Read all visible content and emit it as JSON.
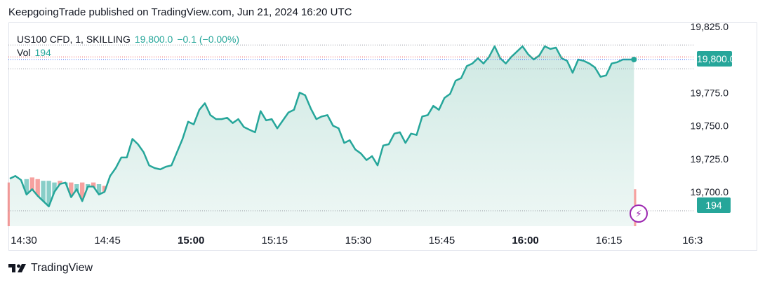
{
  "header": {
    "publish_text": "KeepgoingTrade published on TradingView.com, Jun 21, 2024 16:20 UTC"
  },
  "legend": {
    "symbol": "US100 CFD, 1, SKILLING",
    "price": "19,800.0",
    "change": "−0.1 (−0.00%)",
    "vol_label": "Vol",
    "vol_value": "194"
  },
  "badges": {
    "price": "19,800.0",
    "volume": "194"
  },
  "brand": {
    "name": "TradingView"
  },
  "icons": {
    "logo": "tradingview-logo-icon",
    "bolt": "lightning-bolt-icon"
  },
  "colors": {
    "up": "#26a69a",
    "down": "#ef5350",
    "area_top": "#cfe9e3",
    "area_bottom": "#eef7f5",
    "bolt": "#9c27b0"
  },
  "chart_data": {
    "type": "area",
    "x_start": "14:30",
    "interval_minutes": 1,
    "x_ticks": [
      "14:30",
      "14:45",
      "15:00",
      "15:15",
      "15:30",
      "15:45",
      "16:00",
      "16:15",
      "16:3"
    ],
    "x_ticks_bold": [
      "15:00",
      "16:00"
    ],
    "y_ticks": [
      "19,700.0",
      "19,725.0",
      "19,750.0",
      "19,775.0",
      "19,800.0",
      "19,825.0"
    ],
    "ylim": [
      19680,
      19832
    ],
    "close": [
      19710,
      19712,
      19709,
      19698,
      19702,
      19697,
      19693,
      19689,
      19700,
      19706,
      19707,
      19696,
      19702,
      19693,
      19704,
      19704,
      19698,
      19700,
      19712,
      19718,
      19726,
      19726,
      19740,
      19736,
      19730,
      19720,
      19718,
      19717,
      19719,
      19720,
      19730,
      19740,
      19753,
      19751,
      19762,
      19767,
      19758,
      19755,
      19755,
      19756,
      19752,
      19755,
      19749,
      19747,
      19745,
      19761,
      19754,
      19755,
      19748,
      19754,
      19760,
      19762,
      19775,
      19773,
      19763,
      19755,
      19757,
      19758,
      19750,
      19748,
      19737,
      19739,
      19732,
      19729,
      19724,
      19727,
      19720,
      19735,
      19736,
      19744,
      19745,
      19737,
      19744,
      19743,
      19757,
      19758,
      19765,
      19762,
      19771,
      19774,
      19784,
      19786,
      19795,
      19797,
      19801,
      19797,
      19802,
      19810,
      19801,
      19797,
      19802,
      19806,
      19810,
      19804,
      19800,
      19803,
      19810,
      19808,
      19809,
      19801,
      19799,
      19790,
      19800,
      19799,
      19797,
      19794,
      19787,
      19788,
      19797,
      19798,
      19800,
      19800,
      19800
    ],
    "volume": [
      {
        "v": 26,
        "d": 1
      },
      {
        "v": 27,
        "d": 1
      },
      {
        "v": 26,
        "d": 0
      },
      {
        "v": 28,
        "d": 0
      },
      {
        "v": 29,
        "d": 1
      },
      {
        "v": 28,
        "d": 1
      },
      {
        "v": 27,
        "d": 0
      },
      {
        "v": 27,
        "d": 0
      },
      {
        "v": 26,
        "d": 0
      },
      {
        "v": 27,
        "d": 1
      },
      {
        "v": 26,
        "d": 0
      },
      {
        "v": 26,
        "d": 1
      },
      {
        "v": 25,
        "d": 0
      },
      {
        "v": 26,
        "d": 1
      },
      {
        "v": 25,
        "d": 0
      },
      {
        "v": 26,
        "d": 1
      },
      {
        "v": 25,
        "d": 0
      },
      {
        "v": 24,
        "d": 1
      },
      {
        "v": 25,
        "d": 0
      },
      {
        "v": 24,
        "d": 1
      },
      {
        "v": 25,
        "d": 0
      },
      {
        "v": 24,
        "d": 1
      },
      {
        "v": 25,
        "d": 0
      },
      {
        "v": 26,
        "d": 1
      },
      {
        "v": 25,
        "d": 1
      },
      {
        "v": 26,
        "d": 0
      },
      {
        "v": 24,
        "d": 1
      },
      {
        "v": 25,
        "d": 0
      },
      {
        "v": 24,
        "d": 1
      },
      {
        "v": 25,
        "d": 0
      },
      {
        "v": 24,
        "d": 1
      },
      {
        "v": 25,
        "d": 0
      },
      {
        "v": 24,
        "d": 0
      },
      {
        "v": 26,
        "d": 1
      },
      {
        "v": 25,
        "d": 0
      },
      {
        "v": 26,
        "d": 0
      },
      {
        "v": 25,
        "d": 1
      },
      {
        "v": 24,
        "d": 0
      },
      {
        "v": 25,
        "d": 0
      },
      {
        "v": 24,
        "d": 1
      },
      {
        "v": 23,
        "d": 0
      },
      {
        "v": 24,
        "d": 1
      },
      {
        "v": 23,
        "d": 0
      },
      {
        "v": 24,
        "d": 1
      },
      {
        "v": 25,
        "d": 1
      },
      {
        "v": 24,
        "d": 0
      },
      {
        "v": 25,
        "d": 0
      },
      {
        "v": 24,
        "d": 1
      },
      {
        "v": 23,
        "d": 0
      },
      {
        "v": 24,
        "d": 1
      },
      {
        "v": 23,
        "d": 0
      },
      {
        "v": 24,
        "d": 1
      },
      {
        "v": 24,
        "d": 0
      },
      {
        "v": 25,
        "d": 1
      },
      {
        "v": 23,
        "d": 0
      },
      {
        "v": 24,
        "d": 1
      },
      {
        "v": 23,
        "d": 0
      },
      {
        "v": 24,
        "d": 1
      },
      {
        "v": 23,
        "d": 1
      },
      {
        "v": 24,
        "d": 0
      },
      {
        "v": 23,
        "d": 1
      },
      {
        "v": 24,
        "d": 1
      },
      {
        "v": 25,
        "d": 1
      },
      {
        "v": 24,
        "d": 1
      },
      {
        "v": 25,
        "d": 0
      },
      {
        "v": 24,
        "d": 0
      },
      {
        "v": 23,
        "d": 1
      },
      {
        "v": 24,
        "d": 0
      },
      {
        "v": 23,
        "d": 0
      },
      {
        "v": 24,
        "d": 1
      },
      {
        "v": 23,
        "d": 0
      },
      {
        "v": 22,
        "d": 0
      },
      {
        "v": 23,
        "d": 1
      },
      {
        "v": 24,
        "d": 0
      },
      {
        "v": 23,
        "d": 0
      },
      {
        "v": 24,
        "d": 0
      },
      {
        "v": 23,
        "d": 1
      },
      {
        "v": 22,
        "d": 0
      },
      {
        "v": 23,
        "d": 1
      },
      {
        "v": 24,
        "d": 0
      },
      {
        "v": 23,
        "d": 1
      },
      {
        "v": 22,
        "d": 0
      },
      {
        "v": 23,
        "d": 0
      },
      {
        "v": 24,
        "d": 0
      },
      {
        "v": 23,
        "d": 1
      },
      {
        "v": 22,
        "d": 0
      },
      {
        "v": 23,
        "d": 1
      },
      {
        "v": 22,
        "d": 0
      },
      {
        "v": 23,
        "d": 1
      },
      {
        "v": 22,
        "d": 0
      },
      {
        "v": 23,
        "d": 0
      },
      {
        "v": 22,
        "d": 1
      },
      {
        "v": 23,
        "d": 0
      },
      {
        "v": 22,
        "d": 0
      },
      {
        "v": 23,
        "d": 1
      },
      {
        "v": 22,
        "d": 0
      },
      {
        "v": 23,
        "d": 1
      },
      {
        "v": 22,
        "d": 0
      },
      {
        "v": 23,
        "d": 1
      },
      {
        "v": 22,
        "d": 0
      },
      {
        "v": 21,
        "d": 1
      },
      {
        "v": 22,
        "d": 1
      },
      {
        "v": 21,
        "d": 0
      },
      {
        "v": 21,
        "d": 1
      },
      {
        "v": 22,
        "d": 0
      },
      {
        "v": 21,
        "d": 0
      },
      {
        "v": 22,
        "d": 1
      },
      {
        "v": 22,
        "d": 1
      },
      {
        "v": 21,
        "d": 0
      },
      {
        "v": 21,
        "d": 0
      },
      {
        "v": 22,
        "d": 1
      },
      {
        "v": 21,
        "d": 0
      },
      {
        "v": 22,
        "d": 1
      }
    ],
    "last_price": 19800,
    "last_volume": 194,
    "grid": false
  }
}
